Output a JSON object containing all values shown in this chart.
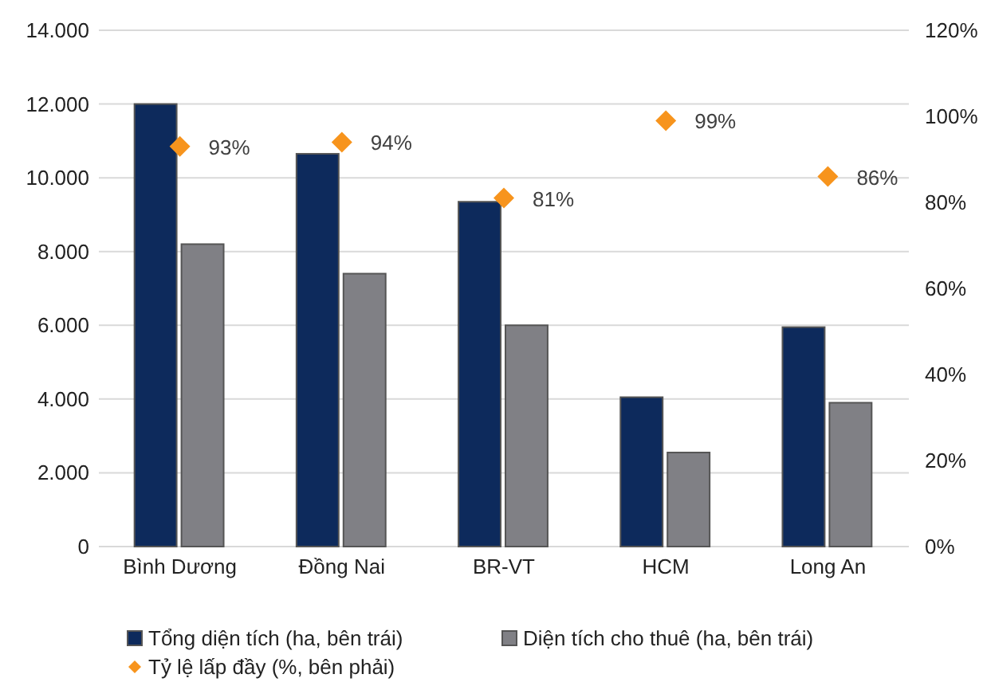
{
  "chart_data": {
    "type": "bar",
    "categories": [
      "Bình Dương",
      "Đồng Nai",
      "BR-VT",
      "HCM",
      "Long An"
    ],
    "series": [
      {
        "name": "Tổng diện tích (ha, bên trái)",
        "color": "#0d2a5c",
        "values": [
          12000,
          10650,
          9350,
          4050,
          5950
        ]
      },
      {
        "name": "Diện tích cho thuê (ha, bên trái)",
        "color": "#808085",
        "values": [
          8200,
          7400,
          6000,
          2550,
          3900
        ]
      },
      {
        "name": "Tỷ lệ lấp đầy (%, bên phải)",
        "type": "scatter",
        "axis": "y2",
        "color": "#f7941d",
        "marker": "diamond",
        "values": [
          93,
          94,
          81,
          99,
          86
        ],
        "value_labels": [
          "93%",
          "94%",
          "81%",
          "99%",
          "86%"
        ]
      }
    ],
    "ylim": [
      0,
      14000
    ],
    "yticks": [
      {
        "value": 0,
        "label": "0"
      },
      {
        "value": 2000,
        "label": "2.000"
      },
      {
        "value": 4000,
        "label": "4.000"
      },
      {
        "value": 6000,
        "label": "6.000"
      },
      {
        "value": 8000,
        "label": "8.000"
      },
      {
        "value": 10000,
        "label": "10.000"
      },
      {
        "value": 12000,
        "label": "12.000"
      },
      {
        "value": 14000,
        "label": "14.000"
      }
    ],
    "y2lim": [
      0,
      120
    ],
    "y2ticks": [
      {
        "value": 0,
        "label": "0%"
      },
      {
        "value": 20,
        "label": "20%"
      },
      {
        "value": 40,
        "label": "40%"
      },
      {
        "value": 60,
        "label": "60%"
      },
      {
        "value": 80,
        "label": "80%"
      },
      {
        "value": 100,
        "label": "100%"
      },
      {
        "value": 120,
        "label": "120%"
      }
    ],
    "grid": "y",
    "legend": "bottom"
  }
}
